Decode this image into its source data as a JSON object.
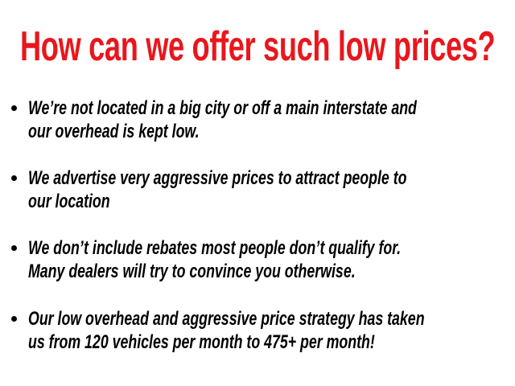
{
  "title": "How can we offer such low prices?",
  "colors": {
    "title": "#e8171d",
    "text": "#000000"
  },
  "bullets": [
    {
      "lines": [
        "We’re not located in a big city or off a main interstate and",
        "our overhead is kept low."
      ]
    },
    {
      "lines": [
        "We advertise very aggressive prices to attract people to",
        "our location"
      ]
    },
    {
      "lines": [
        "We don’t include rebates most people don’t qualify for.",
        "Many dealers will try to convince you otherwise."
      ]
    },
    {
      "lines": [
        "Our low overhead and aggressive price strategy has taken",
        "us from 120 vehicles per month to 475+ per month!"
      ]
    }
  ]
}
